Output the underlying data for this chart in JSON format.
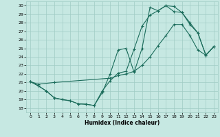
{
  "xlabel": "Humidex (Indice chaleur)",
  "xlim": [
    -0.5,
    23.5
  ],
  "ylim": [
    17.5,
    30.5
  ],
  "yticks": [
    18,
    19,
    20,
    21,
    22,
    23,
    24,
    25,
    26,
    27,
    28,
    29,
    30
  ],
  "xticks": [
    0,
    1,
    2,
    3,
    4,
    5,
    6,
    7,
    8,
    9,
    10,
    11,
    12,
    13,
    14,
    15,
    16,
    17,
    18,
    19,
    20,
    21,
    22,
    23
  ],
  "bg_color": "#c6e8e2",
  "grid_color": "#a0ccc4",
  "line_color": "#1a6b5a",
  "line1_x": [
    0,
    1,
    2,
    3,
    4,
    5,
    6,
    7,
    8,
    9,
    10,
    11,
    12,
    13,
    14,
    15,
    16,
    17,
    18,
    19,
    20,
    21,
    22,
    23
  ],
  "line1_y": [
    21.1,
    20.6,
    20.0,
    19.2,
    19.0,
    18.85,
    18.5,
    18.45,
    18.3,
    19.8,
    22.0,
    24.8,
    25.0,
    22.2,
    25.0,
    29.8,
    29.4,
    30.0,
    29.3,
    29.2,
    28.0,
    26.8,
    24.2,
    25.2
  ],
  "line2_x": [
    0,
    1,
    2,
    3,
    4,
    5,
    6,
    7,
    8,
    9,
    10,
    11,
    12,
    13,
    14,
    15,
    16,
    17,
    18,
    19,
    20,
    21,
    22,
    23
  ],
  "line2_y": [
    21.1,
    20.6,
    20.0,
    19.2,
    19.0,
    18.85,
    18.5,
    18.45,
    18.3,
    20.0,
    21.2,
    22.1,
    22.3,
    24.9,
    27.6,
    28.9,
    29.4,
    30.0,
    29.9,
    29.2,
    27.8,
    26.8,
    24.2,
    25.2
  ],
  "line3_x": [
    0,
    1,
    3,
    10,
    11,
    12,
    13,
    14,
    15,
    16,
    17,
    18,
    19,
    20,
    21,
    22,
    23
  ],
  "line3_y": [
    21.1,
    20.8,
    21.0,
    21.5,
    21.8,
    22.0,
    22.3,
    23.0,
    24.0,
    25.3,
    26.5,
    27.8,
    27.8,
    26.5,
    24.8,
    24.2,
    25.2
  ],
  "marker": "+",
  "markersize": 3,
  "linewidth": 0.8
}
